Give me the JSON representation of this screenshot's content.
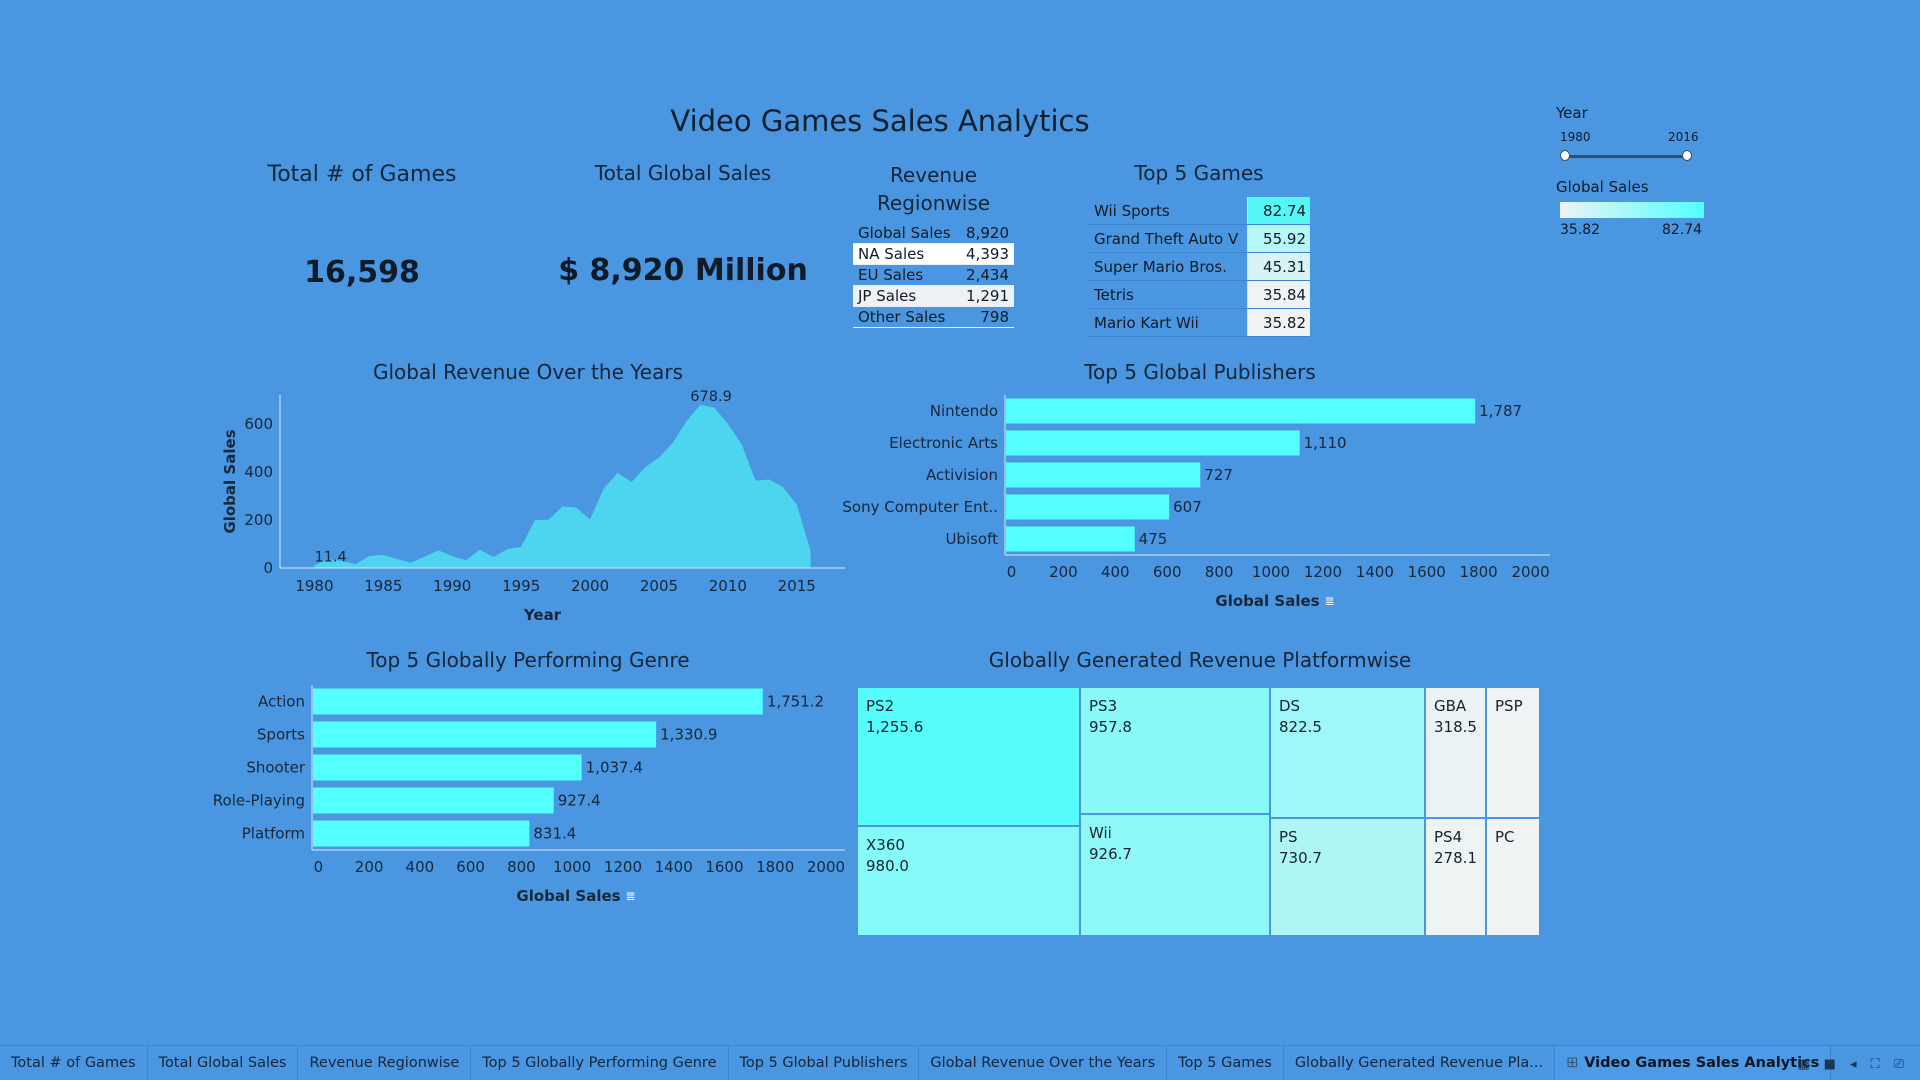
{
  "dashboard_title": "Video Games Sales Analytics",
  "kpis": {
    "total_games_title": "Total # of Games",
    "total_games_value": "16,598",
    "total_sales_title": "Total Global Sales",
    "total_sales_value": "$ 8,920 Million"
  },
  "region": {
    "title_line1": "Revenue",
    "title_line2": "Regionwise",
    "rows": [
      {
        "label": "Global Sales",
        "value": "8,920"
      },
      {
        "label": "NA Sales",
        "value": "4,393"
      },
      {
        "label": "EU Sales",
        "value": "2,434"
      },
      {
        "label": "JP Sales",
        "value": "1,291"
      },
      {
        "label": "Other Sales",
        "value": "798"
      }
    ]
  },
  "top_games": {
    "title": "Top 5 Games",
    "rows": [
      {
        "name": "Wii Sports",
        "value": "82.74",
        "color": "#56f6f6"
      },
      {
        "name": "Grand Theft Auto V",
        "value": "55.92",
        "color": "#b6f6f6"
      },
      {
        "name": "Super Mario Bros.",
        "value": "45.31",
        "color": "#d7f3f4"
      },
      {
        "name": "Tetris",
        "value": "35.84",
        "color": "#eff3f4"
      },
      {
        "name": "Mario Kart Wii",
        "value": "35.82",
        "color": "#eff3f4"
      }
    ]
  },
  "filters": {
    "year_label": "Year",
    "year_min": "1980",
    "year_max": "2016",
    "legend_label": "Global Sales",
    "legend_min": "35.82",
    "legend_max": "82.74"
  },
  "chart_data": [
    {
      "type": "area",
      "title": "Global Revenue Over the Years",
      "xlabel": "Year",
      "ylabel": "Global Sales",
      "x": [
        1980,
        1981,
        1982,
        1983,
        1984,
        1985,
        1986,
        1987,
        1988,
        1989,
        1990,
        1991,
        1992,
        1993,
        1994,
        1995,
        1996,
        1997,
        1998,
        1999,
        2000,
        2001,
        2002,
        2003,
        2004,
        2005,
        2006,
        2007,
        2008,
        2009,
        2010,
        2011,
        2012,
        2013,
        2014,
        2015,
        2016
      ],
      "values": [
        11.4,
        35.8,
        28.9,
        16.8,
        50.4,
        53.9,
        37.1,
        21.7,
        47.2,
        73.5,
        49.4,
        32.2,
        76.2,
        45.9,
        79.2,
        88.1,
        199.2,
        200.9,
        256.5,
        251.3,
        201.6,
        331.5,
        395.5,
        357.9,
        419.3,
        459.9,
        521.0,
        611.1,
        678.9,
        667.3,
        600.3,
        515.8,
        363.5,
        368.1,
        337.1,
        264.4,
        70.9
      ],
      "annotations": [
        {
          "x": 1980,
          "label": "11.4"
        },
        {
          "x": 2008,
          "label": "678.9"
        }
      ],
      "x_ticks": [
        1980,
        1985,
        1990,
        1995,
        2000,
        2005,
        2010,
        2015
      ],
      "y_ticks": [
        0,
        200,
        400,
        600
      ],
      "ylim": [
        0,
        720
      ],
      "xlim": [
        1977.5,
        2018.5
      ],
      "color": "#4dd4ee"
    },
    {
      "type": "bar",
      "orientation": "horizontal",
      "title": "Top 5 Global Publishers",
      "xlabel": "Global Sales",
      "categories": [
        "Nintendo",
        "Electronic Arts",
        "Activision",
        "Sony Computer Ent..",
        "Ubisoft"
      ],
      "values": [
        1786.6,
        1110.3,
        727.5,
        607.5,
        474.7
      ],
      "value_labels": [
        "1,787",
        "1,110",
        "727",
        "607",
        "475"
      ],
      "x_ticks": [
        0,
        200,
        400,
        600,
        800,
        1000,
        1200,
        1400,
        1600,
        1800,
        2000
      ],
      "xlim": [
        -25,
        2075
      ],
      "color": "#53ffff"
    },
    {
      "type": "bar",
      "orientation": "horizontal",
      "title": "Top 5 Globally Performing Genre",
      "xlabel": "Global Sales",
      "categories": [
        "Action",
        "Sports",
        "Shooter",
        "Role-Playing",
        "Platform"
      ],
      "values": [
        1751.2,
        1330.9,
        1037.4,
        927.4,
        831.4
      ],
      "value_labels": [
        "1,751.2",
        "1,330.9",
        "1,037.4",
        "927.4",
        "831.4"
      ],
      "x_ticks": [
        0,
        200,
        400,
        600,
        800,
        1000,
        1200,
        1400,
        1600,
        1800,
        2000
      ],
      "xlim": [
        -25,
        2075
      ],
      "color": "#53ffff"
    },
    {
      "type": "treemap",
      "title": "Globally Generated Revenue Platformwise",
      "tiles": [
        {
          "name": "PS2",
          "value": "1,255.6",
          "color": "#57fcfd"
        },
        {
          "name": "X360",
          "value": "980.0",
          "color": "#86fafb"
        },
        {
          "name": "PS3",
          "value": "957.8",
          "color": "#8af9fa"
        },
        {
          "name": "Wii",
          "value": "926.7",
          "color": "#8ff8f9"
        },
        {
          "name": "DS",
          "value": "822.5",
          "color": "#9ef7f8"
        },
        {
          "name": "PS",
          "value": "730.7",
          "color": "#aef5f6"
        },
        {
          "name": "GBA",
          "value": "318.5",
          "color": "#eaf3f4"
        },
        {
          "name": "PS4",
          "value": "278.1",
          "color": "#eef3f4"
        },
        {
          "name": "PSP",
          "value": "",
          "color": "#eff3f4"
        },
        {
          "name": "PC",
          "value": "",
          "color": "#eff3f4"
        }
      ]
    }
  ],
  "tabs": [
    {
      "label": "Total # of Games"
    },
    {
      "label": "Total Global Sales"
    },
    {
      "label": "Revenue Regionwise"
    },
    {
      "label": "Top 5 Globally Performing Genre"
    },
    {
      "label": "Top 5 Global Publishers"
    },
    {
      "label": "Global Revenue Over the Years"
    },
    {
      "label": "Top 5 Games"
    },
    {
      "label": "Globally Generated Revenue Pla..."
    },
    {
      "label": "Video Games Sales Analytics",
      "active": true
    }
  ]
}
